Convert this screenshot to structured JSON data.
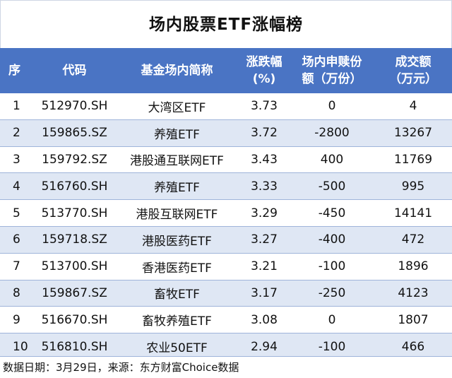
{
  "title": "场内股票ETF涨幅榜",
  "headers": {
    "rank": "序",
    "code": "代码",
    "name": "基金场内简称",
    "change_line1": "涨跌幅",
    "change_line2": "(%)",
    "flow_line1": "场内申赎份",
    "flow_line2": "额（万份）",
    "turnover_line1": "成交额",
    "turnover_line2": "（万元）"
  },
  "rows": [
    {
      "rank": "1",
      "code": "512970.SH",
      "name": "大湾区ETF",
      "change": "3.73",
      "flow": "0",
      "turnover": "4"
    },
    {
      "rank": "2",
      "code": "159865.SZ",
      "name": "养殖ETF",
      "change": "3.72",
      "flow": "-2800",
      "turnover": "13267"
    },
    {
      "rank": "3",
      "code": "159792.SZ",
      "name": "港股通互联网ETF",
      "change": "3.43",
      "flow": "400",
      "turnover": "11769"
    },
    {
      "rank": "4",
      "code": "516760.SH",
      "name": "养殖ETF",
      "change": "3.33",
      "flow": "-500",
      "turnover": "995"
    },
    {
      "rank": "5",
      "code": "513770.SH",
      "name": "港股互联网ETF",
      "change": "3.29",
      "flow": "-450",
      "turnover": "14141"
    },
    {
      "rank": "6",
      "code": "159718.SZ",
      "name": "港股医药ETF",
      "change": "3.27",
      "flow": "-400",
      "turnover": "472"
    },
    {
      "rank": "7",
      "code": "513700.SH",
      "name": "香港医药ETF",
      "change": "3.21",
      "flow": "-100",
      "turnover": "1896"
    },
    {
      "rank": "8",
      "code": "159867.SZ",
      "name": "畜牧ETF",
      "change": "3.17",
      "flow": "-250",
      "turnover": "4123"
    },
    {
      "rank": "9",
      "code": "516670.SH",
      "name": "畜牧养殖ETF",
      "change": "3.08",
      "flow": "0",
      "turnover": "1807"
    },
    {
      "rank": "10",
      "code": "516810.SH",
      "name": "农业50ETF",
      "change": "2.94",
      "flow": "-100",
      "turnover": "466"
    }
  ],
  "footer": "数据日期：3月29日，来源：东方财富Choice数据",
  "colors": {
    "header_bg": "#4a74c4",
    "stripe_bg": "#dfe7f4",
    "row_border": "#9fb4da"
  }
}
